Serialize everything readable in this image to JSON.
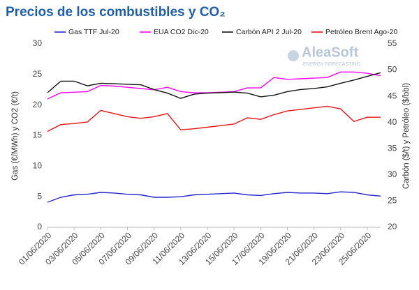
{
  "chart_data": {
    "type": "line",
    "title": "Precios de los combustibles y CO₂",
    "ylabel": "Gas (€/MWh) y CO2 (€/t)",
    "y2label": "Carbón ($/t) y Petróleo ($/bbl)",
    "logo_text": "AleaSoft",
    "logo_tagline": "ENERGY FORECASTING",
    "categories": [
      "01/06/2020",
      null,
      "03/06/2020",
      null,
      "05/06/2020",
      null,
      "07/06/2020",
      null,
      "09/06/2020",
      null,
      "11/06/2020",
      null,
      "13/06/2020",
      null,
      "15/06/2020",
      null,
      "17/06/2020",
      null,
      "19/06/2020",
      null,
      "21/06/2020",
      null,
      "23/06/2020",
      null,
      "25/06/2020",
      null
    ],
    "ylim": [
      0,
      30
    ],
    "yticks": [
      0,
      5,
      10,
      15,
      20,
      25,
      30
    ],
    "y2lim": [
      20,
      55
    ],
    "y2ticks": [
      20,
      25,
      30,
      35,
      40,
      45,
      50,
      55
    ],
    "grid": false,
    "legend": "top",
    "series": [
      {
        "name": "Gas TTF Jul-20",
        "color": "#2424d0",
        "values": [
          4.1,
          4.9,
          5.3,
          5.4,
          5.7,
          5.6,
          5.4,
          5.3,
          4.9,
          4.9,
          5.0,
          5.3,
          5.4,
          5.5,
          5.6,
          5.3,
          5.2,
          5.5,
          5.7,
          5.6,
          5.6,
          5.5,
          5.8,
          5.7,
          5.3,
          5.1
        ]
      },
      {
        "name": "EUA CO2 Dic-20",
        "color": "#ff00ff",
        "values": [
          21.0,
          22.0,
          22.1,
          22.2,
          23.2,
          23.1,
          22.9,
          22.7,
          22.5,
          22.9,
          22.2,
          22.0,
          22.0,
          22.1,
          22.2,
          22.8,
          22.8,
          24.5,
          24.2,
          24.3,
          24.4,
          24.5,
          25.4,
          25.4,
          25.2,
          24.8
        ]
      },
      {
        "name": "Carbón API 2 Jul-20",
        "color": "#111111",
        "axis": "y2",
        "values": [
          45.7,
          47.9,
          47.9,
          47.0,
          47.5,
          47.4,
          47.3,
          47.2,
          46.3,
          45.6,
          44.6,
          45.4,
          45.6,
          45.7,
          45.8,
          45.6,
          44.9,
          45.2,
          45.9,
          46.3,
          46.5,
          46.8,
          47.5,
          48.1,
          48.8,
          49.5
        ]
      },
      {
        "name": "Petróleo Brent Ago-20",
        "color": "#e61414",
        "axis": "y2",
        "values": [
          38.3,
          39.6,
          39.8,
          40.1,
          42.3,
          41.7,
          41.1,
          40.8,
          41.1,
          41.7,
          38.6,
          38.8,
          39.1,
          39.4,
          39.7,
          40.9,
          40.6,
          41.5,
          42.2,
          42.5,
          42.8,
          43.1,
          42.6,
          40.2,
          41.0,
          41.0
        ]
      }
    ]
  }
}
